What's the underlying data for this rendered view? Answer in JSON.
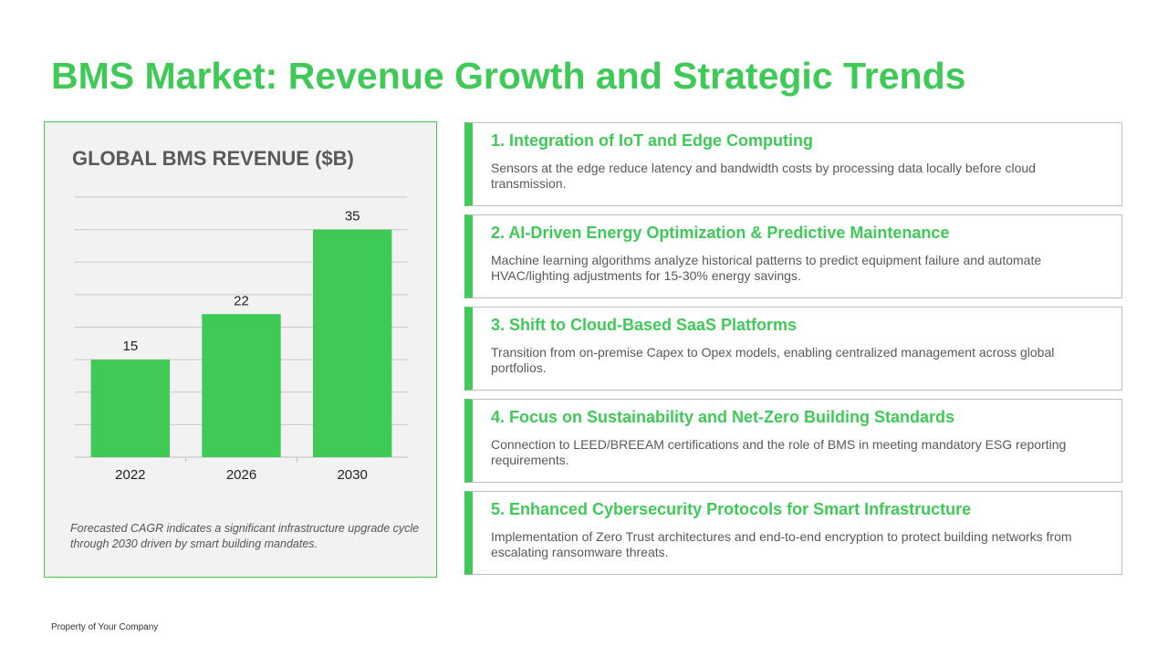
{
  "slide": {
    "title": "BMS Market: Revenue Growth and Strategic Trends",
    "footer": "Property of Your Company"
  },
  "chart_panel": {
    "title": "GLOBAL BMS REVENUE ($B)",
    "note": "Forecasted CAGR indicates a significant infrastructure upgrade cycle through 2030 driven by smart building mandates."
  },
  "chart_data": {
    "type": "bar",
    "title": "GLOBAL BMS REVENUE ($B)",
    "categories": [
      "2022",
      "2026",
      "2030"
    ],
    "values": [
      15,
      22,
      35
    ],
    "ylim": [
      0,
      40
    ],
    "grid": true,
    "data_labels": true,
    "bar_color": "#3fc956"
  },
  "trends": [
    {
      "title": "1. Integration of IoT and Edge Computing",
      "description": "Sensors at the edge reduce latency and bandwidth costs by processing data locally before cloud transmission."
    },
    {
      "title": "2. AI-Driven Energy Optimization & Predictive Maintenance",
      "description": "Machine learning algorithms analyze historical patterns to predict equipment failure and automate HVAC/lighting adjustments for 15-30% energy savings."
    },
    {
      "title": "3. Shift to Cloud-Based SaaS Platforms",
      "description": "Transition from on-premise Capex to Opex models, enabling centralized management across global portfolios."
    },
    {
      "title": "4. Focus on Sustainability and Net-Zero Building Standards",
      "description": "Connection to LEED/BREEAM certifications and the role of BMS in meeting mandatory ESG reporting requirements."
    },
    {
      "title": "5. Enhanced Cybersecurity Protocols for Smart Infrastructure",
      "description": "Implementation of Zero Trust architectures and end-to-end encryption to protect building networks from escalating ransomware threats."
    }
  ],
  "colors": {
    "accent": "#3fc956",
    "panel_background": "#f2f2f2",
    "card_border": "#bdbdbd"
  }
}
